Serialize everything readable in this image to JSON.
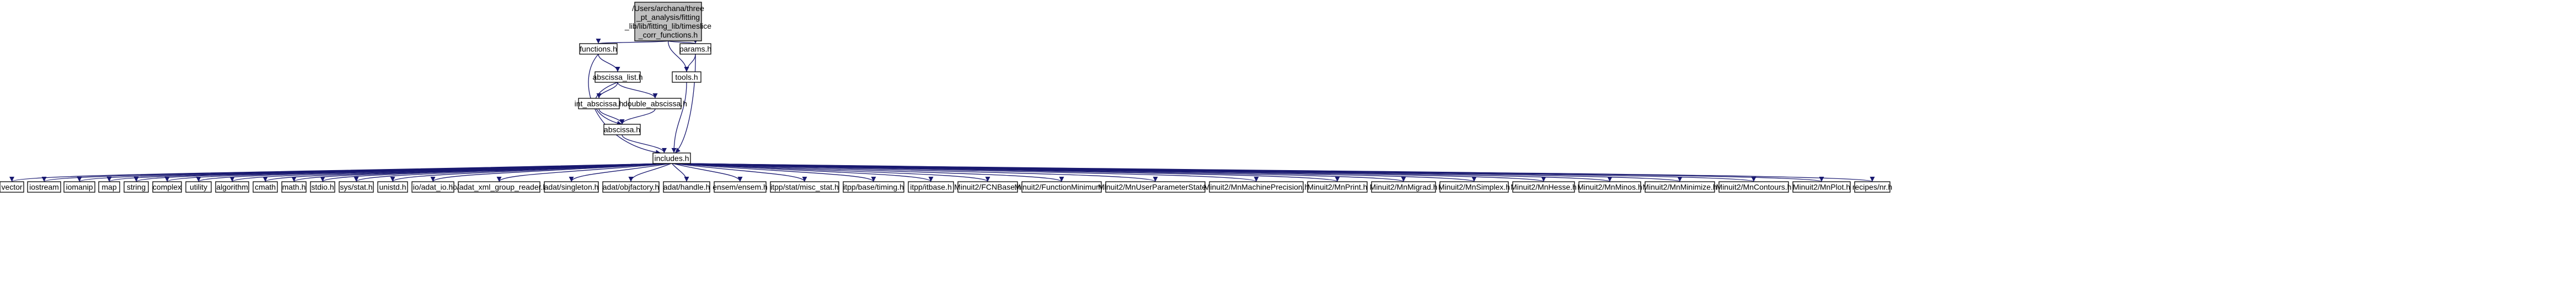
{
  "graph": {
    "nodes": [
      {
        "id": "root",
        "lines": [
          "/Users/archana/three",
          "_pt_analysis/fitting",
          "_lib/lib/fitting_lib/timeslice",
          "_corr_functions.h"
        ]
      },
      {
        "id": "functions",
        "lines": [
          "functions.h"
        ]
      },
      {
        "id": "params",
        "lines": [
          "params.h"
        ]
      },
      {
        "id": "abscissa_list",
        "lines": [
          "abscissa_list.h"
        ]
      },
      {
        "id": "tools",
        "lines": [
          "tools.h"
        ]
      },
      {
        "id": "int_abscissa",
        "lines": [
          "int_abscissa.h"
        ]
      },
      {
        "id": "double_abscissa",
        "lines": [
          "double_abscissa.h"
        ]
      },
      {
        "id": "abscissa",
        "lines": [
          "abscissa.h"
        ]
      },
      {
        "id": "includes",
        "lines": [
          "includes.h"
        ]
      },
      {
        "id": "vector",
        "lines": [
          "vector"
        ]
      },
      {
        "id": "iostream",
        "lines": [
          "iostream"
        ]
      },
      {
        "id": "iomanip",
        "lines": [
          "iomanip"
        ]
      },
      {
        "id": "map",
        "lines": [
          "map"
        ]
      },
      {
        "id": "string",
        "lines": [
          "string"
        ]
      },
      {
        "id": "complex",
        "lines": [
          "complex"
        ]
      },
      {
        "id": "utility",
        "lines": [
          "utility"
        ]
      },
      {
        "id": "algorithm",
        "lines": [
          "algorithm"
        ]
      },
      {
        "id": "cmath",
        "lines": [
          "cmath"
        ]
      },
      {
        "id": "math",
        "lines": [
          "math.h"
        ]
      },
      {
        "id": "stdio",
        "lines": [
          "stdio.h"
        ]
      },
      {
        "id": "sysstat",
        "lines": [
          "sys/stat.h"
        ]
      },
      {
        "id": "unistd",
        "lines": [
          "unistd.h"
        ]
      },
      {
        "id": "adat_io",
        "lines": [
          "io/adat_io.h"
        ]
      },
      {
        "id": "adat_xml",
        "lines": [
          "io/adat_xml_group_reader.h"
        ]
      },
      {
        "id": "singleton",
        "lines": [
          "adat/singleton.h"
        ]
      },
      {
        "id": "objfactory",
        "lines": [
          "adat/objfactory.h"
        ]
      },
      {
        "id": "handle",
        "lines": [
          "adat/handle.h"
        ]
      },
      {
        "id": "ensem",
        "lines": [
          "ensem/ensem.h"
        ]
      },
      {
        "id": "misc_stat",
        "lines": [
          "itpp/stat/misc_stat.h"
        ]
      },
      {
        "id": "timing",
        "lines": [
          "itpp/base/timing.h"
        ]
      },
      {
        "id": "itbase",
        "lines": [
          "itpp/itbase.h"
        ]
      },
      {
        "id": "fcnbase",
        "lines": [
          "Minuit2/FCNBase.h"
        ]
      },
      {
        "id": "fmin",
        "lines": [
          "Minuit2/FunctionMinimum.h"
        ]
      },
      {
        "id": "mnups",
        "lines": [
          "Minuit2/MnUserParameterState.h"
        ]
      },
      {
        "id": "mnprec",
        "lines": [
          "Minuit2/MnMachinePrecision.h"
        ]
      },
      {
        "id": "mnprint",
        "lines": [
          "Minuit2/MnPrint.h"
        ]
      },
      {
        "id": "mnmigrad",
        "lines": [
          "Minuit2/MnMigrad.h"
        ]
      },
      {
        "id": "mnsimplex",
        "lines": [
          "Minuit2/MnSimplex.h"
        ]
      },
      {
        "id": "mnhesse",
        "lines": [
          "Minuit2/MnHesse.h"
        ]
      },
      {
        "id": "mnminos",
        "lines": [
          "Minuit2/MnMinos.h"
        ]
      },
      {
        "id": "mnminimize",
        "lines": [
          "Minuit2/MnMinimize.h"
        ]
      },
      {
        "id": "mncontours",
        "lines": [
          "Minuit2/MnContours.h"
        ]
      },
      {
        "id": "mnplot",
        "lines": [
          "Minuit2/MnPlot.h"
        ]
      },
      {
        "id": "nr",
        "lines": [
          "recipes/nr.h"
        ]
      }
    ],
    "edges": [
      [
        "root",
        "functions"
      ],
      [
        "root",
        "tools"
      ],
      [
        "root",
        "params"
      ],
      [
        "functions",
        "abscissa_list"
      ],
      [
        "functions",
        "includes"
      ],
      [
        "params",
        "tools"
      ],
      [
        "params",
        "includes"
      ],
      [
        "abscissa_list",
        "int_abscissa"
      ],
      [
        "abscissa_list",
        "double_abscissa"
      ],
      [
        "abscissa_list",
        "abscissa"
      ],
      [
        "int_abscissa",
        "abscissa"
      ],
      [
        "double_abscissa",
        "abscissa"
      ],
      [
        "abscissa",
        "includes"
      ],
      [
        "tools",
        "includes"
      ],
      [
        "includes",
        "vector"
      ],
      [
        "includes",
        "iostream"
      ],
      [
        "includes",
        "iomanip"
      ],
      [
        "includes",
        "map"
      ],
      [
        "includes",
        "string"
      ],
      [
        "includes",
        "complex"
      ],
      [
        "includes",
        "utility"
      ],
      [
        "includes",
        "algorithm"
      ],
      [
        "includes",
        "cmath"
      ],
      [
        "includes",
        "math"
      ],
      [
        "includes",
        "stdio"
      ],
      [
        "includes",
        "sysstat"
      ],
      [
        "includes",
        "unistd"
      ],
      [
        "includes",
        "adat_io"
      ],
      [
        "includes",
        "adat_xml"
      ],
      [
        "includes",
        "singleton"
      ],
      [
        "includes",
        "objfactory"
      ],
      [
        "includes",
        "handle"
      ],
      [
        "includes",
        "ensem"
      ],
      [
        "includes",
        "misc_stat"
      ],
      [
        "includes",
        "timing"
      ],
      [
        "includes",
        "itbase"
      ],
      [
        "includes",
        "fcnbase"
      ],
      [
        "includes",
        "fmin"
      ],
      [
        "includes",
        "mnups"
      ],
      [
        "includes",
        "mnprec"
      ],
      [
        "includes",
        "mnprint"
      ],
      [
        "includes",
        "mnmigrad"
      ],
      [
        "includes",
        "mnsimplex"
      ],
      [
        "includes",
        "mnhesse"
      ],
      [
        "includes",
        "mnminos"
      ],
      [
        "includes",
        "mnminimize"
      ],
      [
        "includes",
        "mncontours"
      ],
      [
        "includes",
        "mnplot"
      ],
      [
        "includes",
        "nr"
      ]
    ]
  }
}
